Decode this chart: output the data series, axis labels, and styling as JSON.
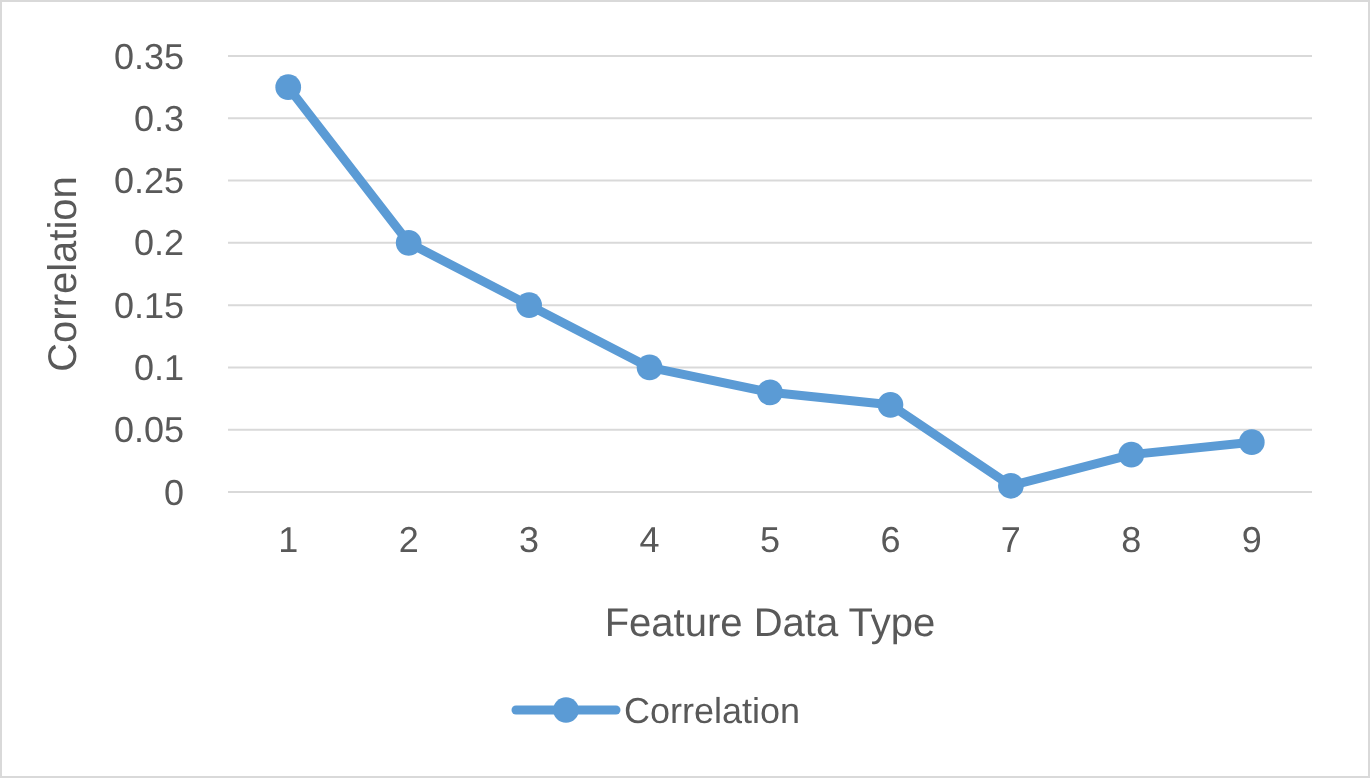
{
  "chart_data": {
    "type": "line",
    "xlabel": "Feature Data Type",
    "ylabel": "Correlation",
    "categories": [
      "1",
      "2",
      "3",
      "4",
      "5",
      "6",
      "7",
      "8",
      "9"
    ],
    "series": [
      {
        "name": "Correlation",
        "color": "#5b9bd5",
        "values": [
          0.325,
          0.2,
          0.15,
          0.1,
          0.08,
          0.07,
          0.005,
          0.03,
          0.04
        ]
      }
    ],
    "ylim": [
      0,
      0.35
    ],
    "yticks": [
      0,
      0.05,
      0.1,
      0.15,
      0.2,
      0.25,
      0.3,
      0.35
    ],
    "grid": "y",
    "legend": "bottom",
    "marker": "circle",
    "line_style": "solid"
  }
}
